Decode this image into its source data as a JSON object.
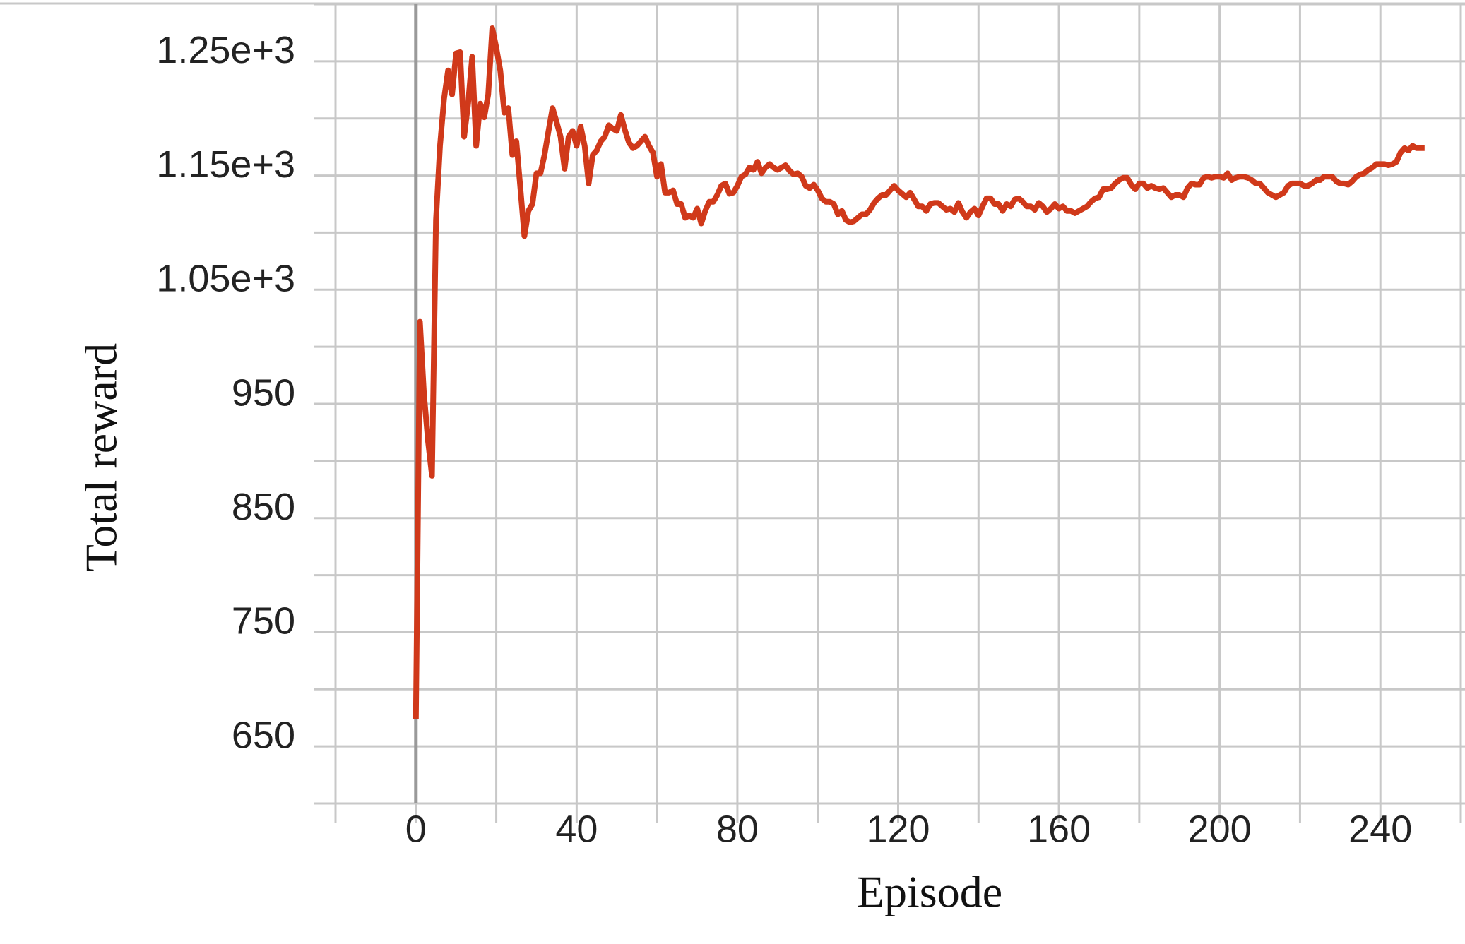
{
  "chart_data": {
    "type": "line",
    "xlabel": "Episode",
    "ylabel": "Total reward",
    "xlim": [
      -20,
      260
    ],
    "ylim": [
      600,
      1300
    ],
    "xticks": [
      0,
      40,
      80,
      120,
      160,
      200,
      240
    ],
    "xminorticks": [
      -20,
      20,
      60,
      100,
      140,
      180,
      220,
      260
    ],
    "yticks": [
      650,
      750,
      850,
      950,
      {
        "value": 1050,
        "label": "1.05e+3"
      },
      {
        "value": 1150,
        "label": "1.15e+3"
      },
      {
        "value": 1250,
        "label": "1.25e+3"
      }
    ],
    "yminorticks": [
      600,
      700,
      800,
      900,
      1000,
      1100,
      1200,
      1300
    ],
    "grid": true,
    "grid_color": "#c8c8c8",
    "zero_line_color": "#999999",
    "series": [
      {
        "color": "#d0391a",
        "x": [
          0,
          1,
          2,
          3,
          4,
          5,
          6,
          7,
          8,
          9,
          10,
          11,
          12,
          13,
          14,
          15,
          16,
          17,
          18,
          19,
          20,
          21,
          22,
          23,
          24,
          25,
          26,
          27,
          28,
          29,
          30,
          31,
          32,
          33,
          34,
          35,
          36,
          37,
          38,
          39,
          40,
          41,
          42,
          43,
          44,
          45,
          46,
          47,
          48,
          49,
          50,
          51,
          52,
          53,
          54,
          55,
          56,
          57,
          58,
          59,
          60,
          61,
          62,
          63,
          64,
          65,
          66,
          67,
          68,
          69,
          70,
          71,
          72,
          73,
          74,
          75,
          76,
          77,
          78,
          79,
          80,
          81,
          82,
          83,
          84,
          85,
          86,
          87,
          88,
          89,
          90,
          91,
          92,
          93,
          94,
          95,
          96,
          97,
          98,
          99,
          100,
          101,
          102,
          103,
          104,
          105,
          106,
          107,
          108,
          109,
          110,
          111,
          112,
          113,
          114,
          115,
          116,
          117,
          118,
          119,
          120,
          121,
          122,
          123,
          124,
          125,
          126,
          127,
          128,
          129,
          130,
          131,
          132,
          133,
          134,
          135,
          136,
          137,
          138,
          139,
          140,
          141,
          142,
          143,
          144,
          145,
          146,
          147,
          148,
          149,
          150,
          151,
          152,
          153,
          154,
          155,
          156,
          157,
          158,
          159,
          160,
          161,
          162,
          163,
          164,
          165,
          166,
          167,
          168,
          169,
          170,
          171,
          172,
          173,
          174,
          175,
          176,
          177,
          178,
          179,
          180,
          181,
          182,
          183,
          184,
          185,
          186,
          187,
          188,
          189,
          190,
          191,
          192,
          193,
          194,
          195,
          196,
          197,
          198,
          199,
          200,
          201,
          202,
          203,
          204,
          205,
          206,
          207,
          208,
          209,
          210,
          211,
          212,
          213,
          214,
          215,
          216,
          217,
          218,
          219,
          220,
          221,
          222,
          223,
          224,
          225,
          226,
          227,
          228,
          229,
          230,
          231,
          232,
          233,
          234,
          235,
          236,
          237,
          238,
          239,
          240,
          241,
          242,
          243,
          244,
          245,
          246,
          247,
          248,
          249,
          250,
          251
        ],
        "values": [
          674,
          1022,
          959,
          918,
          887,
          1111,
          1176,
          1217,
          1242,
          1221,
          1257,
          1258,
          1184,
          1213,
          1254,
          1176,
          1213,
          1201,
          1221,
          1279,
          1262,
          1242,
          1205,
          1209,
          1168,
          1180,
          1139,
          1097,
          1119,
          1125,
          1152,
          1152,
          1168,
          1189,
          1209,
          1197,
          1184,
          1156,
          1184,
          1189,
          1176,
          1193,
          1176,
          1143,
          1168,
          1172,
          1180,
          1184,
          1194,
          1191,
          1189,
          1203,
          1190,
          1179,
          1174,
          1176,
          1180,
          1184,
          1176,
          1170,
          1149,
          1160,
          1135,
          1135,
          1137,
          1125,
          1125,
          1113,
          1115,
          1113,
          1121,
          1108,
          1119,
          1127,
          1127,
          1133,
          1141,
          1143,
          1134,
          1135,
          1141,
          1149,
          1151,
          1157,
          1155,
          1162,
          1152,
          1157,
          1160,
          1157,
          1155,
          1157,
          1159,
          1154,
          1151,
          1152,
          1149,
          1141,
          1139,
          1142,
          1137,
          1130,
          1127,
          1127,
          1125,
          1116,
          1119,
          1111,
          1109,
          1110,
          1113,
          1116,
          1116,
          1120,
          1126,
          1130,
          1133,
          1133,
          1137,
          1141,
          1137,
          1134,
          1131,
          1135,
          1129,
          1123,
          1123,
          1119,
          1125,
          1126,
          1126,
          1123,
          1120,
          1121,
          1118,
          1126,
          1118,
          1113,
          1118,
          1121,
          1115,
          1123,
          1130,
          1130,
          1125,
          1125,
          1119,
          1125,
          1123,
          1129,
          1130,
          1127,
          1123,
          1123,
          1120,
          1126,
          1123,
          1118,
          1121,
          1125,
          1121,
          1123,
          1119,
          1119,
          1117,
          1119,
          1121,
          1123,
          1127,
          1130,
          1131,
          1138,
          1138,
          1139,
          1143,
          1146,
          1148,
          1148,
          1142,
          1138,
          1143,
          1143,
          1139,
          1141,
          1139,
          1138,
          1139,
          1135,
          1131,
          1133,
          1133,
          1131,
          1139,
          1143,
          1142,
          1142,
          1148,
          1149,
          1148,
          1149,
          1149,
          1148,
          1152,
          1146,
          1148,
          1149,
          1149,
          1148,
          1146,
          1143,
          1143,
          1139,
          1135,
          1133,
          1131,
          1133,
          1135,
          1141,
          1143,
          1143,
          1143,
          1141,
          1141,
          1143,
          1146,
          1146,
          1149,
          1149,
          1149,
          1145,
          1143,
          1143,
          1142,
          1145,
          1149,
          1151,
          1152,
          1155,
          1157,
          1160,
          1160,
          1160,
          1159,
          1160,
          1162,
          1170,
          1174,
          1172,
          1176,
          1174,
          1174,
          1174
        ]
      }
    ]
  }
}
